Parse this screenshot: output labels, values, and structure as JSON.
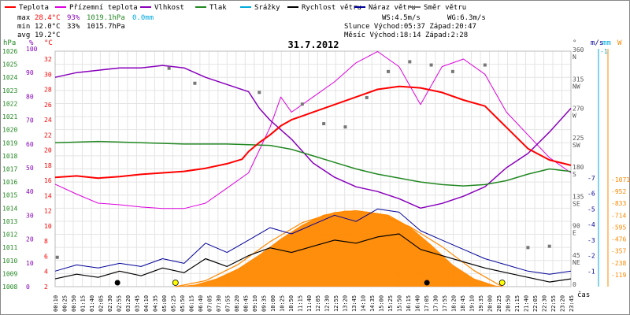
{
  "legend": [
    {
      "key": "teplota",
      "label": "Teplota",
      "color": "#ff0000"
    },
    {
      "key": "pocitova",
      "label": "Přízemní teplota",
      "color": "#dd00dd"
    },
    {
      "key": "vlhkost",
      "label": "Vlhkost",
      "color": "#8800bb"
    },
    {
      "key": "tlak",
      "label": "Tlak",
      "color": "#228822"
    },
    {
      "key": "srazky",
      "label": "Srážky",
      "color": "#00aadd"
    },
    {
      "key": "rychlost",
      "label": "Rychlost větru",
      "color": "#000000"
    },
    {
      "key": "naraz",
      "label": "Náraz větru",
      "color": "#000099"
    },
    {
      "key": "smer",
      "label": "Směr větru",
      "color": "#777777"
    }
  ],
  "stats": {
    "max_label": "max",
    "max_temp": "28.4°C",
    "max_hum": "93%",
    "max_press": "1019.1hPa",
    "max_rain": "0.0mm",
    "min_label": "min",
    "min_temp": "12.0°C",
    "min_hum": "33%",
    "min_press": "1015.7hPa",
    "avg_label": "avg",
    "avg_temp": "19.2°C"
  },
  "info": {
    "ws": "WS:4.5m/s",
    "wg": "WG:6.3m/s",
    "sun": "Slunce Východ:05:37 Západ:20:47",
    "moon": "Měsíc Východ:18:14 Západ:2:28"
  },
  "title": "31.7.2012",
  "axes": {
    "hpa_label": "hPa",
    "pct_label": "%",
    "c_label": "°C",
    "ms_label": "m/s",
    "mm_label": "mm",
    "w_label": "W",
    "deg_label": "°",
    "time_label": "čas",
    "hpa_ticks": [
      "1026",
      "1025",
      "1024",
      "1023",
      "1022",
      "1021",
      "1020",
      "1019",
      "1018",
      "1017",
      "1016",
      "1015",
      "1014",
      "1013",
      "1012",
      "1011",
      "1010",
      "1009",
      "1008"
    ],
    "pct_ticks": [
      "100",
      "90",
      "80",
      "70",
      "60",
      "50",
      "40",
      "30",
      "20",
      "10",
      "0"
    ],
    "c_ticks": [
      "32",
      "30",
      "28",
      "26",
      "24",
      "22",
      "20",
      "18",
      "16",
      "14",
      "12",
      "10",
      "8",
      "6",
      "4",
      "2"
    ],
    "dir_ticks": [
      "360 N",
      "315 NW",
      "270 W",
      "225 SW",
      "180 S",
      "135 SE",
      "90 E",
      "45 NE",
      "0"
    ],
    "ms_ticks": [
      "7",
      "6",
      "5",
      "4",
      "3",
      "2",
      "1"
    ],
    "mm_ticks": [
      "1"
    ],
    "w_ticks": [
      "1071",
      "952",
      "833",
      "714",
      "595",
      "476",
      "357",
      "238",
      "119"
    ],
    "time_ticks": [
      "00:10",
      "00:25",
      "00:50",
      "01:15",
      "01:40",
      "02:05",
      "02:30",
      "02:55",
      "03:20",
      "03:45",
      "04:10",
      "04:35",
      "05:00",
      "05:25",
      "05:50",
      "06:15",
      "06:40",
      "07:05",
      "07:30",
      "07:55",
      "08:20",
      "08:45",
      "09:10",
      "09:35",
      "10:00",
      "10:25",
      "10:50",
      "11:15",
      "11:40",
      "12:05",
      "12:30",
      "12:55",
      "13:20",
      "13:45",
      "14:10",
      "14:35",
      "15:00",
      "15:25",
      "15:50",
      "16:15",
      "16:40",
      "17:05",
      "17:30",
      "17:55",
      "18:20",
      "18:45",
      "19:10",
      "19:35",
      "20:00",
      "20:25",
      "20:50",
      "21:15",
      "21:40",
      "22:05",
      "22:30",
      "22:55",
      "23:20",
      "23:45"
    ]
  },
  "chart_data": {
    "type": "line",
    "x_unit": "hours",
    "xlim": [
      0,
      24
    ],
    "temperature_c": [
      [
        0,
        16.4
      ],
      [
        1,
        16.6
      ],
      [
        2,
        16.3
      ],
      [
        3,
        16.5
      ],
      [
        4,
        16.8
      ],
      [
        5,
        17.0
      ],
      [
        6,
        17.2
      ],
      [
        7,
        17.6
      ],
      [
        8,
        18.2
      ],
      [
        8.7,
        18.8
      ],
      [
        9,
        19.8
      ],
      [
        9.5,
        21.0
      ],
      [
        10,
        22.0
      ],
      [
        10.5,
        23.2
      ],
      [
        11,
        24.0
      ],
      [
        12,
        25.0
      ],
      [
        13,
        26.0
      ],
      [
        14,
        27.0
      ],
      [
        15,
        28.0
      ],
      [
        16,
        28.4
      ],
      [
        17,
        28.2
      ],
      [
        18,
        27.6
      ],
      [
        19,
        26.6
      ],
      [
        20,
        25.8
      ],
      [
        21,
        23.0
      ],
      [
        22,
        20.2
      ],
      [
        23,
        18.7
      ],
      [
        24,
        18.0
      ]
    ],
    "ground_temp_c": [
      [
        0,
        15.5
      ],
      [
        1,
        14.2
      ],
      [
        2,
        13.0
      ],
      [
        3,
        12.8
      ],
      [
        4,
        12.5
      ],
      [
        5,
        12.3
      ],
      [
        6,
        12.3
      ],
      [
        7,
        13.0
      ],
      [
        8,
        15.0
      ],
      [
        9,
        17.0
      ],
      [
        9.5,
        20.0
      ],
      [
        10,
        23.0
      ],
      [
        10.5,
        27.0
      ],
      [
        11,
        25.0
      ],
      [
        12,
        27.0
      ],
      [
        13,
        29.0
      ],
      [
        14,
        31.5
      ],
      [
        15,
        33.0
      ],
      [
        16,
        31.0
      ],
      [
        17,
        26.0
      ],
      [
        18,
        31.0
      ],
      [
        19,
        32.0
      ],
      [
        20,
        30.0
      ],
      [
        21,
        25.0
      ],
      [
        22,
        22.0
      ],
      [
        23,
        19.0
      ],
      [
        24,
        17.0
      ]
    ],
    "humidity_pct": [
      [
        0,
        88
      ],
      [
        1,
        90
      ],
      [
        2,
        91
      ],
      [
        3,
        92
      ],
      [
        4,
        92
      ],
      [
        5,
        93
      ],
      [
        6,
        92
      ],
      [
        7,
        88
      ],
      [
        8,
        85
      ],
      [
        9,
        82
      ],
      [
        9.5,
        75
      ],
      [
        10,
        70
      ],
      [
        11,
        62
      ],
      [
        12,
        52
      ],
      [
        13,
        46
      ],
      [
        14,
        42
      ],
      [
        15,
        40
      ],
      [
        16,
        37
      ],
      [
        17,
        33
      ],
      [
        18,
        35
      ],
      [
        19,
        38
      ],
      [
        20,
        42
      ],
      [
        21,
        50
      ],
      [
        22,
        56
      ],
      [
        23,
        65
      ],
      [
        24,
        75
      ]
    ],
    "pressure_hpa": [
      [
        0,
        1019.0
      ],
      [
        2,
        1019.1
      ],
      [
        4,
        1019.0
      ],
      [
        6,
        1018.9
      ],
      [
        8,
        1018.9
      ],
      [
        10,
        1018.8
      ],
      [
        11,
        1018.5
      ],
      [
        12,
        1018.0
      ],
      [
        13,
        1017.5
      ],
      [
        14,
        1017.0
      ],
      [
        15,
        1016.6
      ],
      [
        16,
        1016.3
      ],
      [
        17,
        1016.0
      ],
      [
        18,
        1015.8
      ],
      [
        19,
        1015.7
      ],
      [
        20,
        1015.8
      ],
      [
        21,
        1016.1
      ],
      [
        22,
        1016.6
      ],
      [
        23,
        1017.0
      ],
      [
        24,
        1016.8
      ]
    ],
    "rain_mm": 0.0,
    "wind_speed_ms": [
      [
        0,
        0.5
      ],
      [
        1,
        0.8
      ],
      [
        2,
        0.6
      ],
      [
        3,
        1.0
      ],
      [
        4,
        0.7
      ],
      [
        5,
        1.2
      ],
      [
        6,
        0.9
      ],
      [
        7,
        1.8
      ],
      [
        8,
        1.3
      ],
      [
        9,
        2.0
      ],
      [
        10,
        2.5
      ],
      [
        11,
        2.2
      ],
      [
        12,
        2.6
      ],
      [
        13,
        3.0
      ],
      [
        14,
        2.8
      ],
      [
        15,
        3.2
      ],
      [
        16,
        3.4
      ],
      [
        17,
        2.4
      ],
      [
        18,
        2.0
      ],
      [
        19,
        1.6
      ],
      [
        20,
        1.2
      ],
      [
        21,
        0.9
      ],
      [
        22,
        0.6
      ],
      [
        23,
        0.3
      ],
      [
        24,
        0.5
      ]
    ],
    "wind_gust_ms": [
      [
        0,
        1.0
      ],
      [
        1,
        1.4
      ],
      [
        2,
        1.2
      ],
      [
        3,
        1.5
      ],
      [
        4,
        1.3
      ],
      [
        5,
        1.8
      ],
      [
        6,
        1.5
      ],
      [
        7,
        2.8
      ],
      [
        8,
        2.2
      ],
      [
        9,
        3.0
      ],
      [
        10,
        3.8
      ],
      [
        11,
        3.4
      ],
      [
        12,
        4.0
      ],
      [
        13,
        4.6
      ],
      [
        14,
        4.2
      ],
      [
        15,
        5.0
      ],
      [
        16,
        4.8
      ],
      [
        17,
        3.6
      ],
      [
        18,
        3.0
      ],
      [
        19,
        2.4
      ],
      [
        20,
        1.8
      ],
      [
        21,
        1.4
      ],
      [
        22,
        1.0
      ],
      [
        23,
        0.8
      ],
      [
        24,
        1.0
      ]
    ],
    "wind_dir_deg": [
      [
        0.1,
        45
      ],
      [
        5.3,
        335
      ],
      [
        6.5,
        312
      ],
      [
        9.5,
        298
      ],
      [
        11.5,
        280
      ],
      [
        12.5,
        250
      ],
      [
        13.5,
        245
      ],
      [
        14.5,
        290
      ],
      [
        15.5,
        330
      ],
      [
        16.5,
        345
      ],
      [
        17.5,
        340
      ],
      [
        18.5,
        330
      ],
      [
        20,
        340
      ],
      [
        22,
        60
      ],
      [
        23,
        62
      ]
    ],
    "solar_w": [
      [
        5.5,
        0
      ],
      [
        6.5,
        20
      ],
      [
        7.5,
        80
      ],
      [
        8.5,
        180
      ],
      [
        9.5,
        320
      ],
      [
        10.5,
        480
      ],
      [
        11.5,
        620
      ],
      [
        12.5,
        720
      ],
      [
        13.5,
        760
      ],
      [
        14.5,
        750
      ],
      [
        15.5,
        720
      ],
      [
        16.5,
        600
      ],
      [
        17.5,
        420
      ],
      [
        18.5,
        220
      ],
      [
        19.5,
        80
      ],
      [
        20.5,
        10
      ],
      [
        21,
        0
      ]
    ],
    "clear_sky_w": [
      [
        5.6,
        0
      ],
      [
        7,
        60
      ],
      [
        8.5,
        220
      ],
      [
        10,
        450
      ],
      [
        11.5,
        640
      ],
      [
        13,
        740
      ],
      [
        14,
        760
      ],
      [
        15,
        730
      ],
      [
        16.5,
        600
      ],
      [
        18,
        400
      ],
      [
        19.5,
        160
      ],
      [
        20.8,
        0
      ]
    ]
  }
}
